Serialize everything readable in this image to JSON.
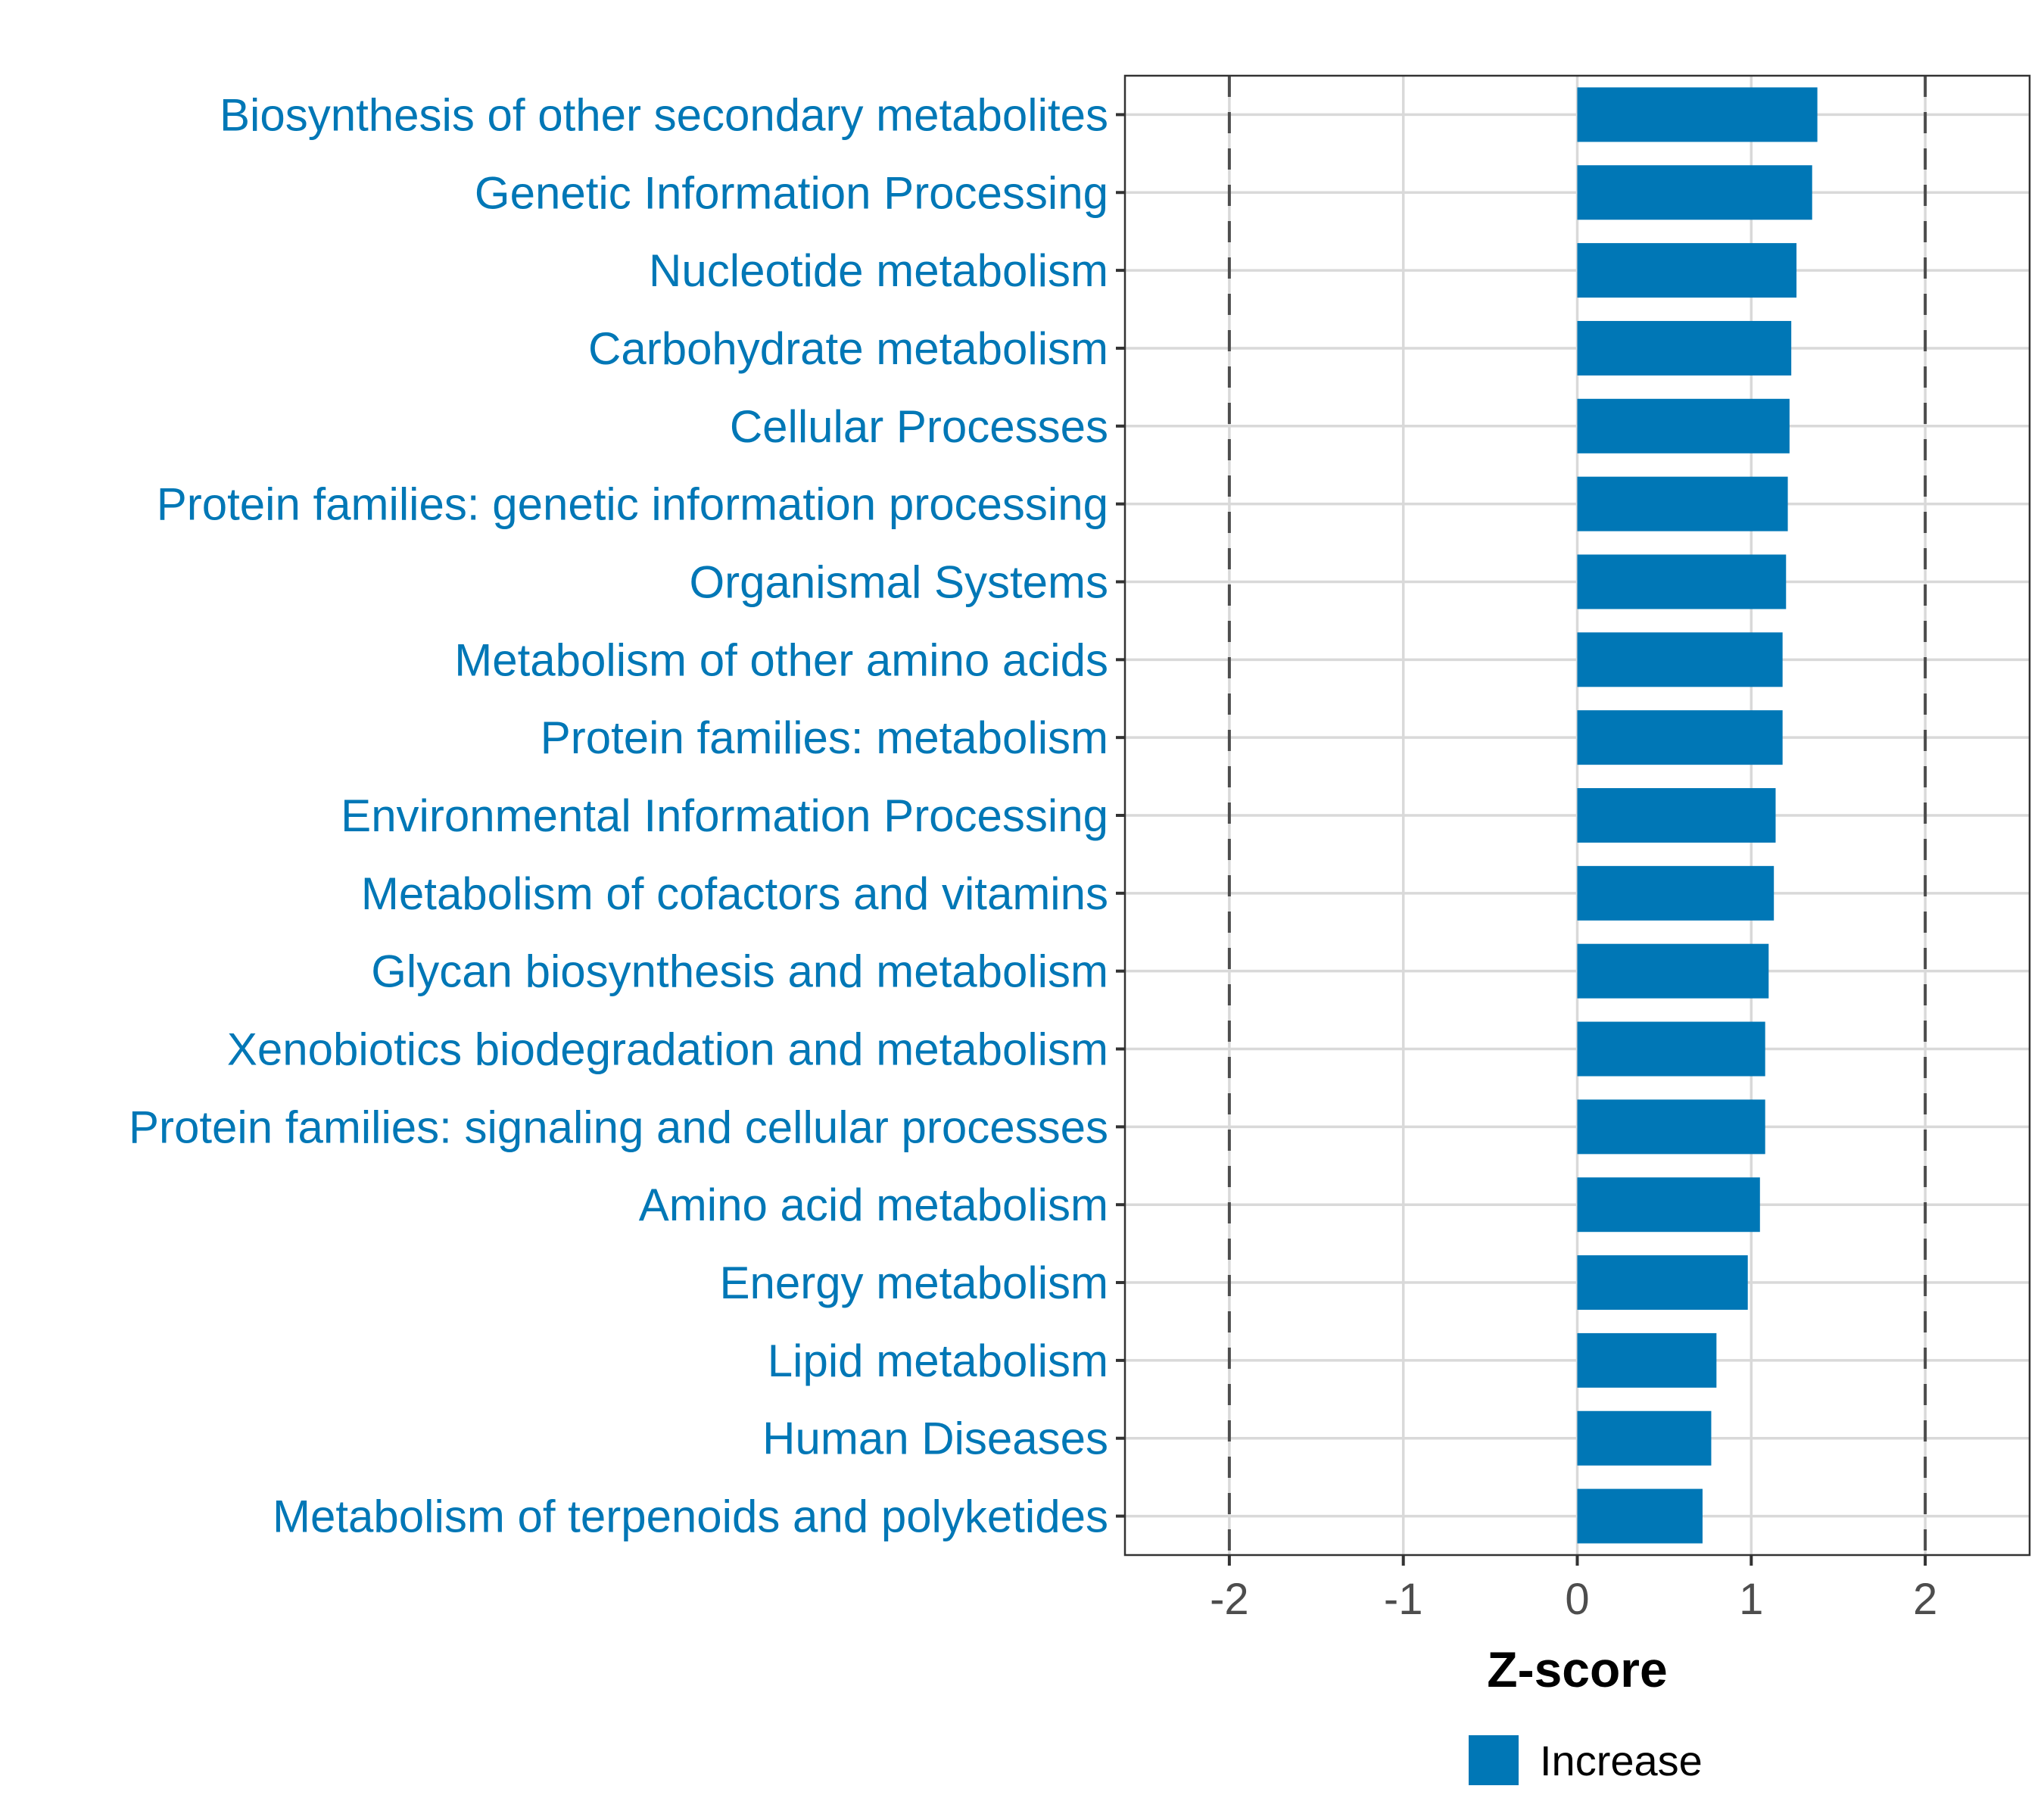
{
  "chart_data": {
    "type": "bar",
    "orientation": "horizontal",
    "title": "",
    "xlabel": "Z-score",
    "ylabel": "",
    "xlim": [
      -2.6,
      2.6
    ],
    "xticks": [
      -2,
      -1,
      0,
      1,
      2
    ],
    "xtick_labels": [
      "-2",
      "-1",
      "0",
      "1",
      "2"
    ],
    "reference_lines": [
      -2,
      2
    ],
    "grid": true,
    "categories": [
      "Biosynthesis of other secondary metabolites",
      "Genetic Information Processing",
      "Nucleotide metabolism",
      "Carbohydrate metabolism",
      "Cellular Processes",
      "Protein families: genetic information processing",
      "Organismal Systems",
      "Metabolism of other amino acids",
      "Protein families: metabolism",
      "Environmental Information Processing",
      "Metabolism of cofactors and vitamins",
      "Glycan biosynthesis and metabolism",
      "Xenobiotics biodegradation and metabolism",
      "Protein families: signaling and cellular processes",
      "Amino acid metabolism",
      "Energy metabolism",
      "Lipid metabolism",
      "Human Diseases",
      "Metabolism of terpenoids and polyketides"
    ],
    "series": [
      {
        "name": "Increase",
        "color": "#0077b6",
        "values": [
          1.38,
          1.35,
          1.26,
          1.23,
          1.22,
          1.21,
          1.2,
          1.18,
          1.18,
          1.14,
          1.13,
          1.1,
          1.08,
          1.08,
          1.05,
          0.98,
          0.8,
          0.77,
          0.72
        ]
      }
    ],
    "legend": {
      "position": "bottom",
      "entries": [
        {
          "label": "Increase",
          "color": "#0077b6"
        }
      ]
    },
    "label_color": "#0077b6"
  }
}
